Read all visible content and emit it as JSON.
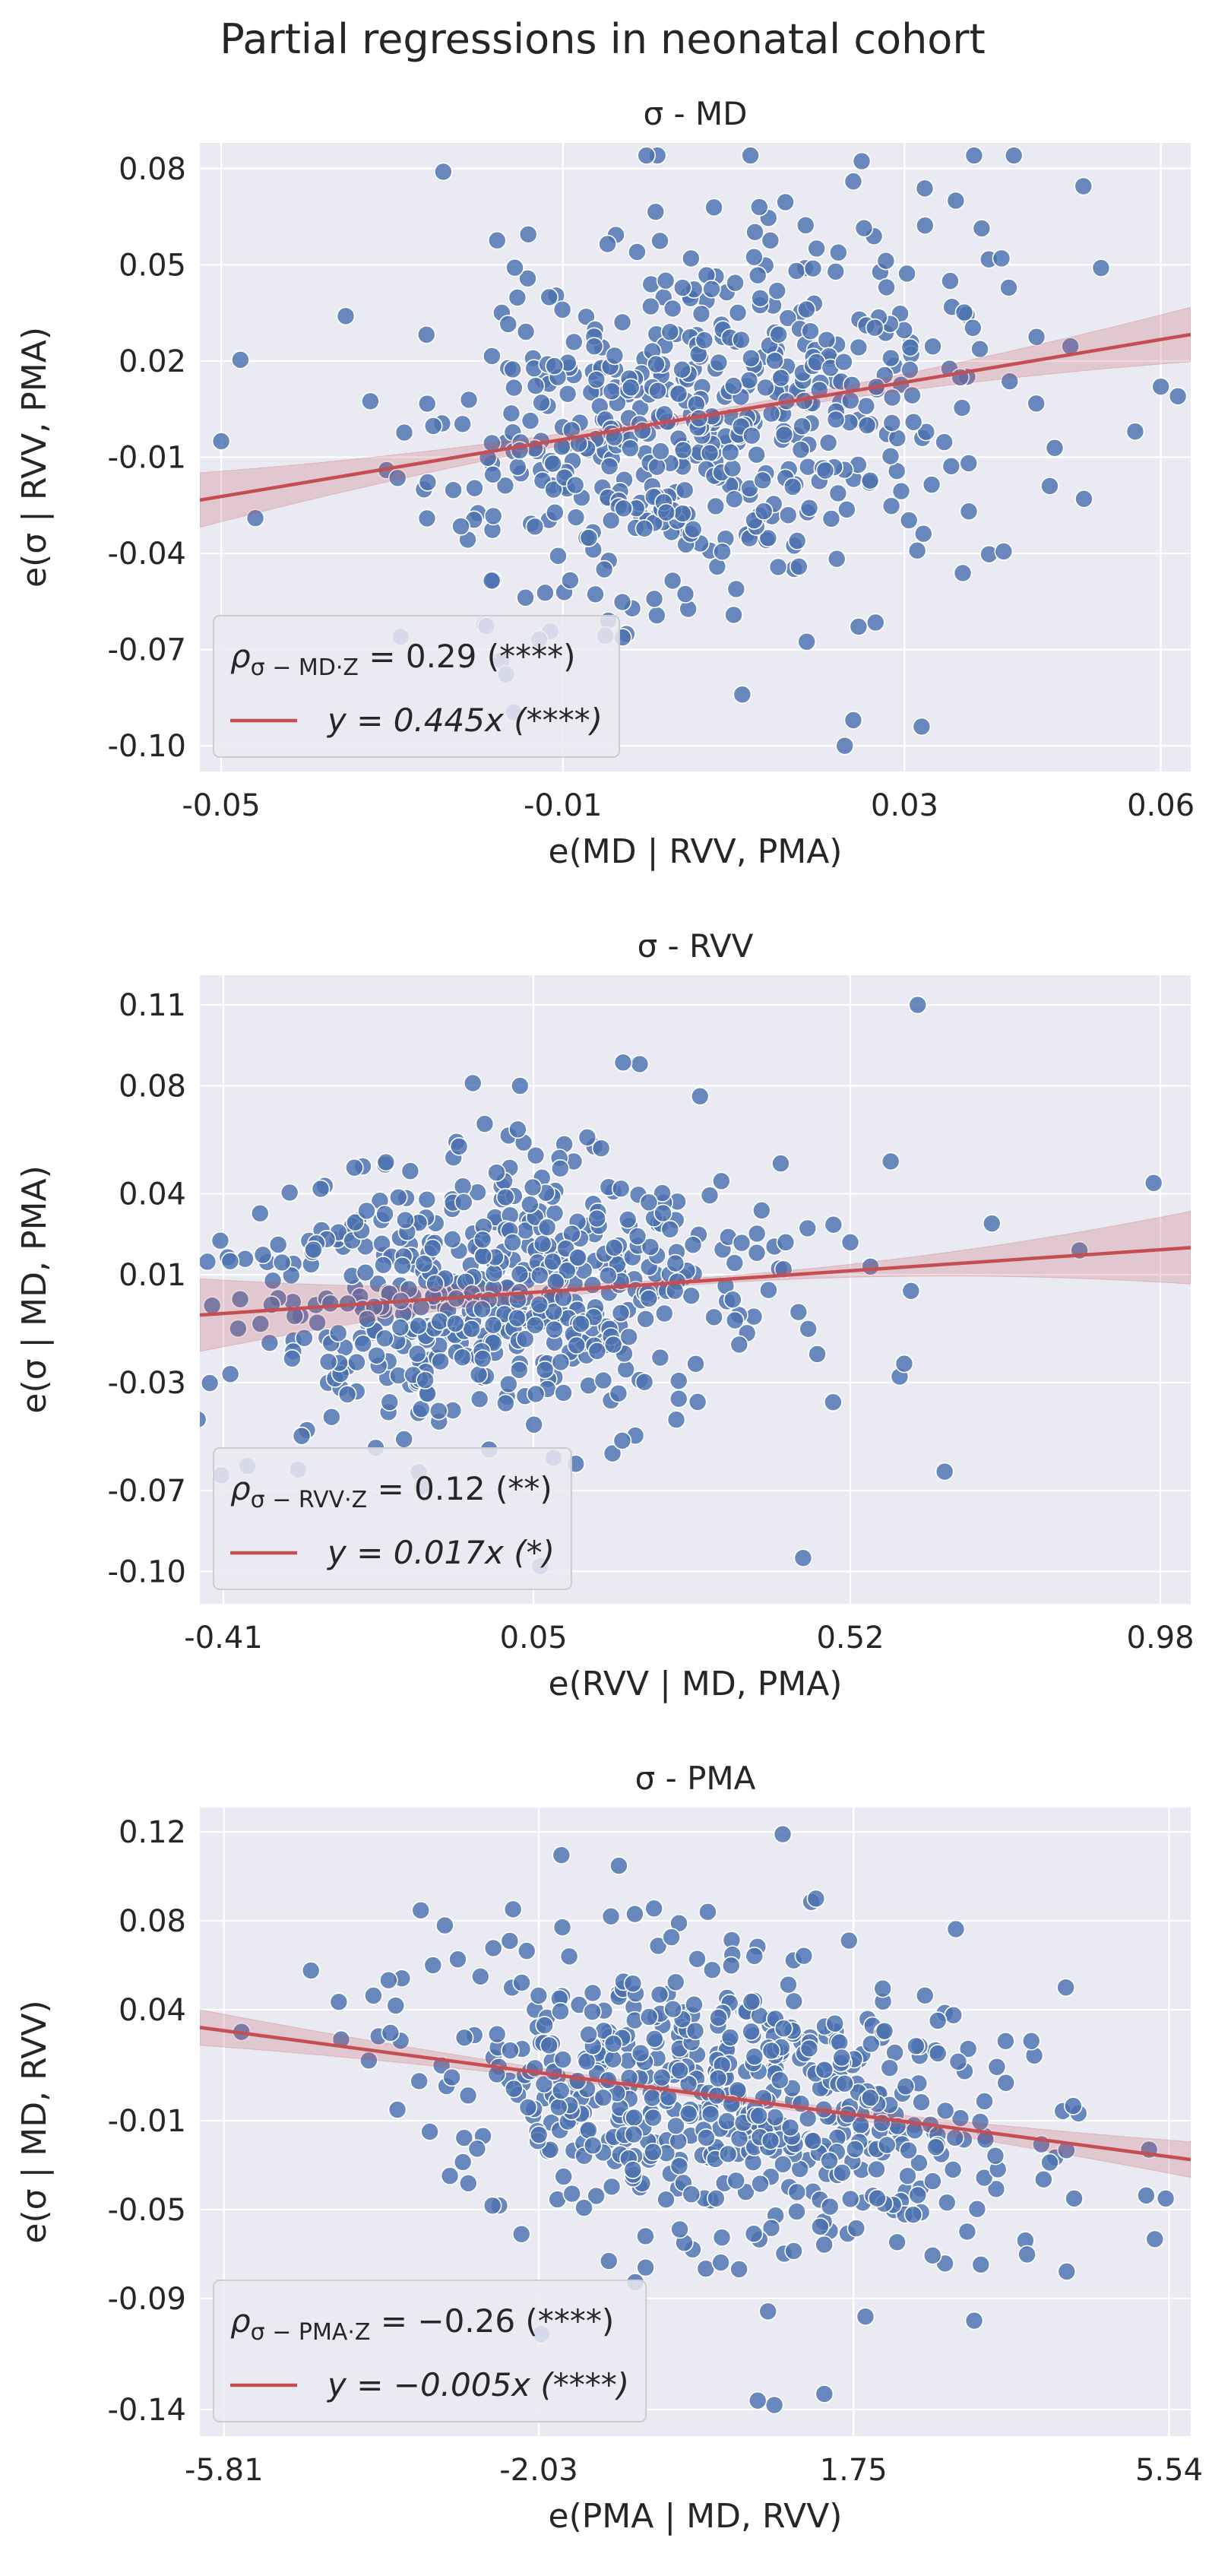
{
  "figure": {
    "suptitle": "Partial regressions in neonatal cohort",
    "colors": {
      "panel_bg": "#eaeaf2",
      "grid": "#ffffff",
      "point": "#4c72b0",
      "line": "#c44e52",
      "text": "#262626"
    }
  },
  "chart_data": [
    {
      "type": "scatter",
      "title": "σ - MD",
      "xlabel": "e(MD | RVV, PMA)",
      "ylabel": "e(σ | RVV, PMA)",
      "xticks": [
        "-0.05",
        "-0.01",
        "0.03",
        "0.06"
      ],
      "xtick_values": [
        -0.05,
        -0.01,
        0.03,
        0.06
      ],
      "yticks": [
        "0.08",
        "0.05",
        "0.02",
        "-0.01",
        "-0.04",
        "-0.07",
        "-0.10"
      ],
      "ytick_values": [
        0.08,
        0.05,
        0.02,
        -0.01,
        -0.04,
        -0.07,
        -0.1
      ],
      "xlim": [
        -0.0525,
        0.0635
      ],
      "ylim": [
        -0.108,
        0.088
      ],
      "grid": true,
      "legend_position": "lower left",
      "legend": {
        "corr_lhs": "ρ",
        "corr_sub": "σ − MD·Z",
        "corr_rhs": " = 0.29 (****)",
        "fit_label": "y = 0.445x (****)"
      },
      "fit": {
        "slope": 0.445,
        "intercept": 0.0,
        "ci_halfwidth_at_edges": 0.0085,
        "ci_halfwidth_at_center": 0.0013
      },
      "scatter_params": {
        "n": 560,
        "x_mean": 0.006,
        "x_sd": 0.0155,
        "y_sd": 0.029,
        "seed": 11
      },
      "extreme_points": [
        {
          "x": -0.024,
          "y": 0.079
        },
        {
          "x": 0.005,
          "y": 0.052
        },
        {
          "x": 0.013,
          "y": 0.068
        },
        {
          "x": 0.024,
          "y": 0.076
        },
        {
          "x": 0.036,
          "y": 0.07
        },
        {
          "x": 0.053,
          "y": 0.049
        },
        {
          "x": 0.06,
          "y": 0.012
        },
        {
          "x": 0.062,
          "y": 0.009
        },
        {
          "x": 0.057,
          "y": -0.002
        },
        {
          "x": 0.047,
          "y": -0.019
        },
        {
          "x": 0.051,
          "y": -0.023
        },
        {
          "x": -0.05,
          "y": -0.005
        },
        {
          "x": -0.046,
          "y": -0.029
        },
        {
          "x": 0.024,
          "y": -0.092
        },
        {
          "x": 0.032,
          "y": -0.094
        },
        {
          "x": 0.023,
          "y": -0.1
        },
        {
          "x": 0.011,
          "y": -0.084
        },
        {
          "x": -0.029,
          "y": -0.066
        }
      ]
    },
    {
      "type": "scatter",
      "title": "σ - RVV",
      "xlabel": "e(RVV | MD, PMA)",
      "ylabel": "e(σ | MD, PMA)",
      "xticks": [
        "-0.41",
        "0.05",
        "0.52",
        "0.98"
      ],
      "xtick_values": [
        -0.41,
        0.05,
        0.52,
        0.98
      ],
      "yticks": [
        "0.11",
        "0.08",
        "0.04",
        "0.01",
        "-0.03",
        "-0.07",
        "-0.10"
      ],
      "ytick_values": [
        0.11,
        0.08,
        0.04,
        0.01,
        -0.03,
        -0.07,
        -0.1
      ],
      "xlim": [
        -0.445,
        1.025
      ],
      "ylim": [
        -0.112,
        0.121
      ],
      "grid": true,
      "legend_position": "lower left",
      "legend": {
        "corr_lhs": "ρ",
        "corr_sub": "σ − RVV·Z",
        "corr_rhs": " = 0.12 (**)",
        "fit_label": "y = 0.017x (*)"
      },
      "fit": {
        "slope": 0.017,
        "intercept": 0.0026,
        "ci_halfwidth_at_edges": 0.0135,
        "ci_halfwidth_at_center": 0.0012
      },
      "scatter_params": {
        "n": 560,
        "x_mean": -0.02,
        "x_sd": 0.18,
        "y_sd": 0.025,
        "seed": 23
      },
      "extreme_points": [
        {
          "x": 0.62,
          "y": 0.11
        },
        {
          "x": 0.97,
          "y": 0.044
        },
        {
          "x": 0.58,
          "y": 0.052
        },
        {
          "x": 0.45,
          "y": -0.095
        },
        {
          "x": 0.66,
          "y": -0.063
        },
        {
          "x": 0.6,
          "y": -0.023
        },
        {
          "x": 0.73,
          "y": 0.029
        },
        {
          "x": 0.86,
          "y": 0.019
        },
        {
          "x": 0.52,
          "y": 0.022
        },
        {
          "x": 0.61,
          "y": 0.004
        },
        {
          "x": 0.55,
          "y": 0.013
        },
        {
          "x": -0.4,
          "y": 0.015
        },
        {
          "x": 0.06,
          "y": -0.098
        },
        {
          "x": 0.03,
          "y": 0.08
        },
        {
          "x": -0.04,
          "y": 0.081
        }
      ]
    },
    {
      "type": "scatter",
      "title": "σ - PMA",
      "xlabel": "e(PMA | MD, RVV)",
      "ylabel": "e(σ | MD, RVV)",
      "xticks": [
        "-5.81",
        "-2.03",
        "1.75",
        "5.54"
      ],
      "xtick_values": [
        -5.81,
        -2.03,
        1.75,
        5.54
      ],
      "yticks": [
        "0.12",
        "0.08",
        "0.04",
        "-0.01",
        "-0.05",
        "-0.09",
        "-0.14"
      ],
      "ytick_values": [
        0.12,
        0.08,
        0.04,
        -0.01,
        -0.05,
        -0.09,
        -0.14
      ],
      "xlim": [
        -6.1,
        5.8
      ],
      "ylim": [
        -0.152,
        0.131
      ],
      "grid": true,
      "legend_position": "lower left",
      "legend": {
        "corr_lhs": "ρ",
        "corr_sub": "σ − PMA·Z",
        "corr_rhs": " = −0.26 (****)",
        "fit_label": "y = −0.005x (****)"
      },
      "fit": {
        "slope": -0.005,
        "intercept": 0.0015,
        "ci_halfwidth_at_edges": 0.008,
        "ci_halfwidth_at_center": 0.0015
      },
      "scatter_params": {
        "n": 600,
        "x_mean": 0.3,
        "x_sd": 1.75,
        "y_sd": 0.032,
        "seed": 37
      },
      "extreme_points": [
        {
          "x": 0.9,
          "y": 0.119
        },
        {
          "x": 1.3,
          "y": 0.09
        },
        {
          "x": 0.0,
          "y": 0.084
        },
        {
          "x": -5.6,
          "y": 0.03
        },
        {
          "x": 5.5,
          "y": -0.045
        },
        {
          "x": 5.3,
          "y": -0.023
        },
        {
          "x": 4.4,
          "y": -0.045
        },
        {
          "x": 1.4,
          "y": -0.133
        },
        {
          "x": 0.8,
          "y": -0.138
        },
        {
          "x": 0.6,
          "y": -0.136
        },
        {
          "x": 3.2,
          "y": -0.1
        },
        {
          "x": 4.3,
          "y": 0.05
        },
        {
          "x": -2.0,
          "y": -0.106
        },
        {
          "x": -3.3,
          "y": 0.06
        }
      ]
    }
  ]
}
